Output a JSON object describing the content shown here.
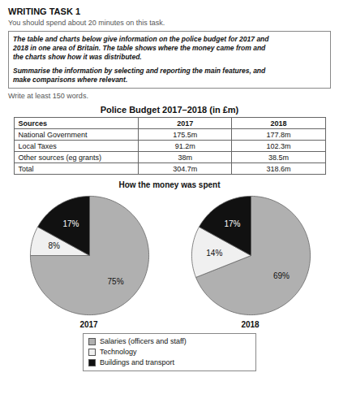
{
  "title": "WRITING TASK 1",
  "subtitle": "You should spend about 20 minutes on this task.",
  "instructions": [
    [
      "The table and charts below give information on the police budget for 2017 and",
      "2018 in one area of Britain. The table shows where the money came from and",
      "the charts show how it was distributed."
    ],
    [
      "Summarise the information by selecting and reporting the main features, and",
      "make comparisons where relevant."
    ]
  ],
  "note": "Write at least 150 words.",
  "pie_title": "How the money was spent",
  "chart_data": [
    {
      "type": "table",
      "title": "Police Budget 2017–2018 (in £m)",
      "columns": [
        "Sources",
        "2017",
        "2018"
      ],
      "rows": [
        [
          "National Government",
          "175.5m",
          "177.8m"
        ],
        [
          "Local Taxes",
          "91.2m",
          "102.3m"
        ],
        [
          "Other sources (eg grants)",
          "38m",
          "38.5m"
        ],
        [
          "Total",
          "304.7m",
          "318.6m"
        ]
      ]
    },
    {
      "type": "pie",
      "title": "2017",
      "categories": [
        "Salaries (officers and staff)",
        "Technology",
        "Buildings and transport"
      ],
      "values": [
        75,
        8,
        17
      ],
      "value_labels": [
        "75%",
        "8%",
        "17%"
      ],
      "colors": [
        "#b0b0b0",
        "#f0f0f0",
        "#111111"
      ],
      "data_labels": true,
      "legend": "bottom"
    },
    {
      "type": "pie",
      "title": "2018",
      "categories": [
        "Salaries (officers and staff)",
        "Technology",
        "Buildings and transport"
      ],
      "values": [
        69,
        14,
        17
      ],
      "value_labels": [
        "69%",
        "14%",
        "17%"
      ],
      "colors": [
        "#b0b0b0",
        "#f0f0f0",
        "#111111"
      ],
      "data_labels": true
    }
  ]
}
